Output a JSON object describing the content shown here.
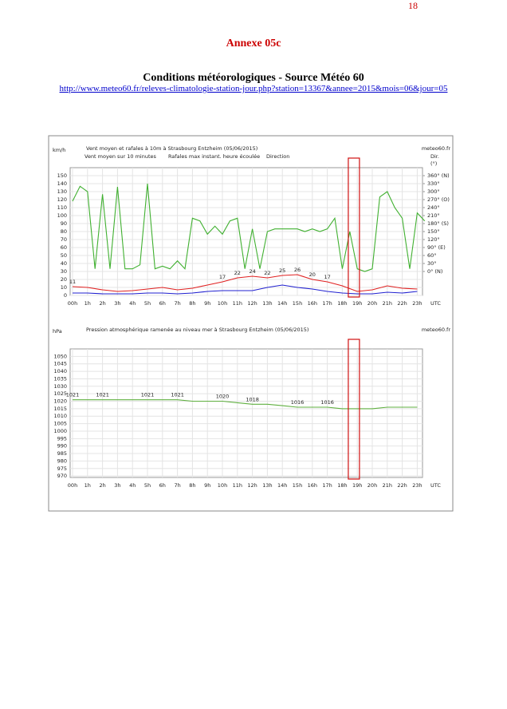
{
  "page_number": "18",
  "annex": "Annexe 05c",
  "heading": "Conditions météorologiques - Source Météo 60",
  "link": "http://www.meteo60.fr/releves-climatologie-station-jour.php?station=13367&annee=2015&mois=06&jour=05",
  "chart_data": [
    {
      "type": "line",
      "title": "Vent moyen et rafales à 10m à Strasbourg Entzheim (05/06/2015)",
      "source": "meteo60.fr",
      "y_label": "km/h",
      "y2_label": [
        "Dir.",
        "(°)"
      ],
      "x_label": "UTC",
      "categories": [
        "00h",
        "1h",
        "2h",
        "3h",
        "4h",
        "5h",
        "6h",
        "7h",
        "8h",
        "9h",
        "10h",
        "11h",
        "12h",
        "13h",
        "14h",
        "15h",
        "16h",
        "17h",
        "18h",
        "19h",
        "20h",
        "21h",
        "22h",
        "23h"
      ],
      "ylim": [
        0,
        160
      ],
      "yticks": [
        0,
        10,
        20,
        30,
        40,
        50,
        60,
        70,
        80,
        90,
        100,
        110,
        120,
        130,
        140,
        150
      ],
      "y2lim": [
        -90,
        390
      ],
      "y2ticks": [
        {
          "value": 0,
          "label": "0° (N)"
        },
        {
          "value": 30,
          "label": "30°"
        },
        {
          "value": 60,
          "label": "60°"
        },
        {
          "value": 90,
          "label": "90° (E)"
        },
        {
          "value": 120,
          "label": "120°"
        },
        {
          "value": 150,
          "label": "150°"
        },
        {
          "value": 180,
          "label": "180° (S)"
        },
        {
          "value": 210,
          "label": "210°"
        },
        {
          "value": 240,
          "label": "240°"
        },
        {
          "value": 270,
          "label": "270° (O)"
        },
        {
          "value": 300,
          "label": "300°"
        },
        {
          "value": 330,
          "label": "330°"
        },
        {
          "value": 360,
          "label": "360° (N)"
        }
      ],
      "grid": true,
      "series": [
        {
          "name": "Vent moyen sur 10 minutes",
          "color": "#2020d0",
          "values": [
            3,
            3,
            2,
            2,
            2,
            3,
            3,
            2,
            3,
            5,
            6,
            6,
            6,
            10,
            13,
            10,
            8,
            5,
            3,
            2,
            2,
            4,
            3,
            5
          ]
        },
        {
          "name": "Rafales max instant. heure écoulée",
          "color": "#e02020",
          "values": [
            11,
            10,
            7,
            5,
            6,
            8,
            10,
            7,
            9,
            13,
            17,
            22,
            24,
            22,
            25,
            26,
            20,
            17,
            12,
            5,
            7,
            12,
            9,
            8
          ],
          "value_labels": [
            "11",
            null,
            null,
            null,
            null,
            null,
            null,
            null,
            null,
            null,
            "17",
            "22",
            "24",
            "22",
            "25",
            "26",
            "20",
            "17",
            null,
            null,
            null,
            null,
            null,
            null
          ]
        },
        {
          "name": "Direction",
          "color": "#40b030",
          "axis": "y2",
          "x": [
            0,
            0.5,
            1,
            1.5,
            2,
            2.5,
            3,
            3.5,
            4,
            4.5,
            5,
            5.5,
            6,
            6.5,
            7,
            7.5,
            8,
            8.5,
            9,
            9.5,
            10,
            10.5,
            11,
            11.5,
            12,
            12.5,
            13,
            13.5,
            14,
            14.5,
            15,
            15.5,
            16,
            16.5,
            17,
            17.5,
            18,
            18.5,
            19,
            19.5,
            20,
            20.5,
            21,
            21.5,
            22,
            22.5,
            23,
            23.5
          ],
          "values": [
            264,
            320,
            300,
            10,
            290,
            10,
            318,
            10,
            10,
            25,
            330,
            10,
            20,
            10,
            40,
            10,
            200,
            190,
            140,
            170,
            140,
            190,
            200,
            10,
            160,
            10,
            150,
            160,
            160,
            160,
            160,
            150,
            160,
            150,
            160,
            200,
            10,
            150,
            10,
            0,
            10,
            280,
            300,
            240,
            200,
            10,
            220,
            190
          ]
        }
      ]
    },
    {
      "type": "line",
      "title": "Pression atmosphérique ramenée au niveau mer à Strasbourg Entzheim (05/06/2015)",
      "source": "meteo60.fr",
      "y_label": "hPa",
      "x_label": "UTC",
      "categories": [
        "00h",
        "1h",
        "2h",
        "3h",
        "4h",
        "5h",
        "6h",
        "7h",
        "8h",
        "9h",
        "10h",
        "11h",
        "12h",
        "13h",
        "14h",
        "15h",
        "16h",
        "17h",
        "18h",
        "19h",
        "20h",
        "21h",
        "22h",
        "23h"
      ],
      "ylim": [
        969,
        1055
      ],
      "yticks": [
        970,
        975,
        980,
        985,
        990,
        995,
        1000,
        1005,
        1010,
        1015,
        1020,
        1025,
        1030,
        1035,
        1040,
        1045,
        1050
      ],
      "grid": true,
      "series": [
        {
          "color": "#60b040",
          "values": [
            1021,
            1021,
            1021,
            1021,
            1021,
            1021,
            1021,
            1021,
            1020,
            1020,
            1020,
            1019,
            1018,
            1018,
            1017,
            1016,
            1016,
            1016,
            1015,
            1015,
            1015,
            1016,
            1016,
            1016
          ],
          "value_labels": [
            "1021",
            null,
            "1021",
            null,
            null,
            "1021",
            null,
            "1021",
            null,
            null,
            "1020",
            null,
            "1018",
            null,
            null,
            "1016",
            null,
            "1016",
            null,
            null,
            null,
            null,
            null,
            null
          ]
        }
      ]
    }
  ]
}
